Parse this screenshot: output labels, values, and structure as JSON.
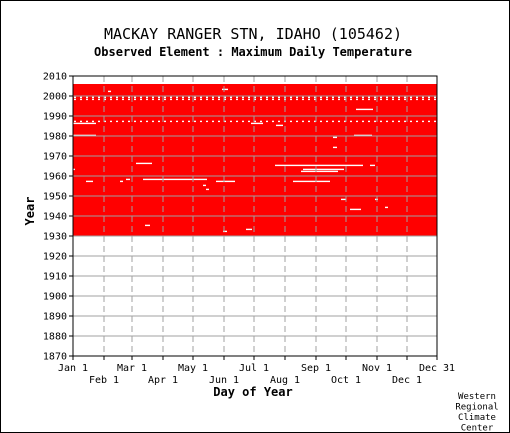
{
  "chart_data": {
    "type": "heatmap",
    "title": "MACKAY RANGER STN, IDAHO   (105462)",
    "subtitle": "Observed Element : Maximum Daily Temperature",
    "xlabel": "Day of Year",
    "ylabel": "Year",
    "x_ticks_top": [
      "Jan 1",
      "Mar 1",
      "May 1",
      "Jul 1",
      "Sep 1",
      "Nov 1",
      "Dec 31"
    ],
    "x_ticks_top_days": [
      1,
      60,
      121,
      182,
      244,
      305,
      365
    ],
    "x_ticks_bottom": [
      "Feb 1",
      "Apr 1",
      "Jun 1",
      "Aug 1",
      "Oct 1",
      "Dec 1"
    ],
    "x_ticks_bottom_days": [
      32,
      91,
      152,
      213,
      274,
      335
    ],
    "y_ticks": [
      2010,
      2000,
      1990,
      1980,
      1970,
      1960,
      1950,
      1940,
      1930,
      1920,
      1910,
      1900,
      1890,
      1880,
      1870
    ],
    "xlim": [
      1,
      365
    ],
    "ylim": [
      1870,
      2010
    ],
    "grid": true,
    "data_color": "#ff0000",
    "data_coverage": {
      "start_year": 1930,
      "end_year": 2005,
      "start_day": 1,
      "end_day": 365
    },
    "missing_segments": [
      {
        "year": 1986,
        "start_day": 1,
        "end_day": 24
      },
      {
        "year": 1980,
        "start_day": 1,
        "end_day": 24
      },
      {
        "year": 1966,
        "start_day": 64,
        "end_day": 80
      },
      {
        "year": 1963,
        "start_day": 1,
        "end_day": 3
      },
      {
        "year": 1957,
        "start_day": 14,
        "end_day": 21
      },
      {
        "year": 1957,
        "start_day": 48,
        "end_day": 51
      },
      {
        "year": 1958,
        "start_day": 54,
        "end_day": 58
      },
      {
        "year": 1958,
        "start_day": 71,
        "end_day": 135
      },
      {
        "year": 1957,
        "start_day": 144,
        "end_day": 163
      },
      {
        "year": 1955,
        "start_day": 131,
        "end_day": 134
      },
      {
        "year": 1953,
        "start_day": 134,
        "end_day": 137
      },
      {
        "year": 1965,
        "start_day": 203,
        "end_day": 291
      },
      {
        "year": 1963,
        "start_day": 231,
        "end_day": 272
      },
      {
        "year": 1962,
        "start_day": 229,
        "end_day": 266
      },
      {
        "year": 1957,
        "start_day": 221,
        "end_day": 258
      },
      {
        "year": 1986,
        "start_day": 179,
        "end_day": 191
      },
      {
        "year": 1985,
        "start_day": 204,
        "end_day": 211
      },
      {
        "year": 1993,
        "start_day": 284,
        "end_day": 301
      },
      {
        "year": 1980,
        "start_day": 282,
        "end_day": 300
      },
      {
        "year": 1979,
        "start_day": 261,
        "end_day": 265
      },
      {
        "year": 1974,
        "start_day": 261,
        "end_day": 265
      },
      {
        "year": 1948,
        "start_day": 269,
        "end_day": 274
      },
      {
        "year": 1943,
        "start_day": 278,
        "end_day": 289
      },
      {
        "year": 1935,
        "start_day": 73,
        "end_day": 78
      },
      {
        "year": 1933,
        "start_day": 174,
        "end_day": 180
      },
      {
        "year": 1932,
        "start_day": 151,
        "end_day": 155
      },
      {
        "year": 1948,
        "start_day": 303,
        "end_day": 306
      },
      {
        "year": 1944,
        "start_day": 313,
        "end_day": 316
      },
      {
        "year": 1965,
        "start_day": 298,
        "end_day": 303
      },
      {
        "year": 2002,
        "start_day": 36,
        "end_day": 39
      },
      {
        "year": 2003,
        "start_day": 150,
        "end_day": 156
      }
    ],
    "sparse_missing_years": [
      1999,
      1998,
      1987
    ],
    "credit": [
      "Western",
      "Regional",
      "Climate",
      "Center"
    ]
  }
}
